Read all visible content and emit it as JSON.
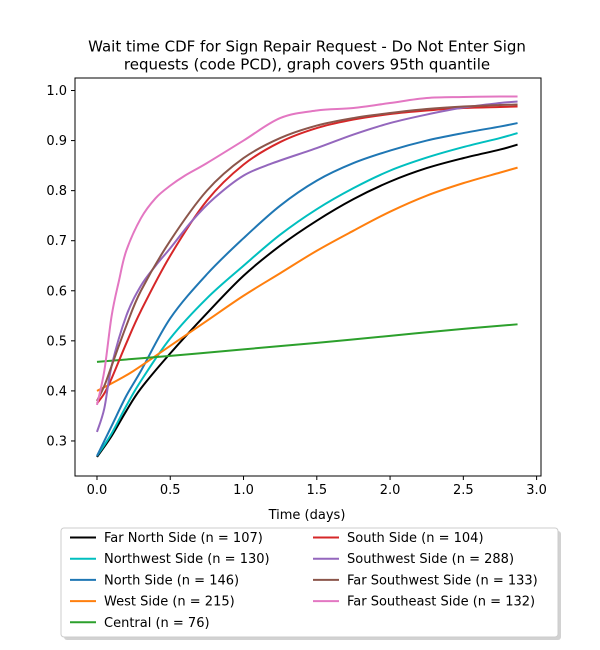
{
  "chart_data": {
    "type": "line",
    "title_lines": [
      "Wait time CDF for Sign Repair Request - Do Not Enter Sign",
      "requests (code PCD), graph covers 95th quantile"
    ],
    "xlabel": "Time (days)",
    "ylabel": "",
    "xlim": [
      -0.15,
      3.03
    ],
    "ylim": [
      0.23,
      1.025
    ],
    "xticks": [
      0.0,
      0.5,
      1.0,
      1.5,
      2.0,
      2.5,
      3.0
    ],
    "xtick_labels": [
      "0.0",
      "0.5",
      "1.0",
      "1.5",
      "2.0",
      "2.5",
      "3.0"
    ],
    "yticks": [
      0.3,
      0.4,
      0.5,
      0.6,
      0.7,
      0.8,
      0.9,
      1.0
    ],
    "ytick_labels": [
      "0.3",
      "0.4",
      "0.5",
      "0.6",
      "0.7",
      "0.8",
      "0.9",
      "1.0"
    ],
    "grid": false,
    "legend_position": "below plot, two columns",
    "series": [
      {
        "name": "Far North Side (n = 107)",
        "color": "#000000",
        "x": [
          0.0,
          0.1,
          0.2,
          0.3,
          0.5,
          0.75,
          1.0,
          1.25,
          1.5,
          1.75,
          2.0,
          2.25,
          2.5,
          2.75,
          2.87
        ],
        "y": [
          0.268,
          0.31,
          0.36,
          0.405,
          0.475,
          0.555,
          0.63,
          0.69,
          0.74,
          0.783,
          0.818,
          0.845,
          0.865,
          0.882,
          0.892
        ]
      },
      {
        "name": "Northwest Side (n = 130)",
        "color": "#00bfbf",
        "x": [
          0.0,
          0.1,
          0.2,
          0.3,
          0.5,
          0.75,
          1.0,
          1.25,
          1.5,
          1.75,
          2.0,
          2.25,
          2.5,
          2.75,
          2.87
        ],
        "y": [
          0.27,
          0.315,
          0.37,
          0.42,
          0.505,
          0.585,
          0.65,
          0.712,
          0.763,
          0.805,
          0.84,
          0.866,
          0.887,
          0.905,
          0.915
        ]
      },
      {
        "name": "North Side (n = 146)",
        "color": "#1f77b4",
        "x": [
          0.0,
          0.1,
          0.2,
          0.3,
          0.5,
          0.75,
          1.0,
          1.25,
          1.5,
          1.75,
          2.0,
          2.25,
          2.5,
          2.75,
          2.87
        ],
        "y": [
          0.27,
          0.33,
          0.39,
          0.44,
          0.545,
          0.633,
          0.705,
          0.77,
          0.82,
          0.855,
          0.88,
          0.9,
          0.915,
          0.928,
          0.935
        ]
      },
      {
        "name": "West Side (n = 215)",
        "color": "#ff7f0e",
        "x": [
          0.0,
          0.1,
          0.25,
          0.5,
          0.75,
          1.0,
          1.25,
          1.5,
          1.75,
          2.0,
          2.25,
          2.5,
          2.75,
          2.87
        ],
        "y": [
          0.4,
          0.415,
          0.44,
          0.49,
          0.54,
          0.59,
          0.635,
          0.68,
          0.72,
          0.758,
          0.79,
          0.815,
          0.836,
          0.846
        ]
      },
      {
        "name": "Central (n = 76)",
        "color": "#2ca02c",
        "x": [
          0.0,
          0.5,
          1.0,
          1.5,
          2.0,
          2.5,
          2.87
        ],
        "y": [
          0.458,
          0.47,
          0.483,
          0.496,
          0.51,
          0.524,
          0.533
        ]
      },
      {
        "name": "South Side (n = 104)",
        "color": "#d62728",
        "x": [
          0.0,
          0.05,
          0.1,
          0.2,
          0.3,
          0.5,
          0.75,
          1.0,
          1.25,
          1.5,
          1.75,
          2.0,
          2.25,
          2.5,
          2.75,
          2.87
        ],
        "y": [
          0.375,
          0.395,
          0.425,
          0.495,
          0.56,
          0.67,
          0.78,
          0.852,
          0.897,
          0.925,
          0.942,
          0.953,
          0.96,
          0.965,
          0.967,
          0.968
        ]
      },
      {
        "name": "Southwest Side (n = 288)",
        "color": "#9467bd",
        "x": [
          0.0,
          0.05,
          0.1,
          0.2,
          0.3,
          0.4,
          0.5,
          0.65,
          0.8,
          1.0,
          1.2,
          1.5,
          1.75,
          2.0,
          2.25,
          2.5,
          2.75,
          2.87
        ],
        "y": [
          0.318,
          0.365,
          0.45,
          0.55,
          0.61,
          0.65,
          0.685,
          0.74,
          0.785,
          0.83,
          0.855,
          0.885,
          0.912,
          0.935,
          0.952,
          0.966,
          0.975,
          0.978
        ]
      },
      {
        "name": "Far Southwest Side (n = 133)",
        "color": "#8c564b",
        "x": [
          0.0,
          0.05,
          0.1,
          0.2,
          0.3,
          0.5,
          0.75,
          1.0,
          1.25,
          1.5,
          1.75,
          2.0,
          2.25,
          2.5,
          2.75,
          2.87
        ],
        "y": [
          0.38,
          0.41,
          0.45,
          0.53,
          0.6,
          0.7,
          0.8,
          0.865,
          0.905,
          0.93,
          0.945,
          0.955,
          0.963,
          0.968,
          0.971,
          0.972
        ]
      },
      {
        "name": "Far Southeast Side (n = 132)",
        "color": "#e377c2",
        "x": [
          0.0,
          0.05,
          0.1,
          0.15,
          0.2,
          0.3,
          0.4,
          0.5,
          0.6,
          0.75,
          1.0,
          1.25,
          1.5,
          1.75,
          2.0,
          2.25,
          2.5,
          2.75,
          2.87
        ],
        "y": [
          0.372,
          0.44,
          0.55,
          0.62,
          0.68,
          0.745,
          0.785,
          0.81,
          0.83,
          0.855,
          0.9,
          0.945,
          0.96,
          0.965,
          0.975,
          0.985,
          0.987,
          0.988,
          0.988
        ]
      }
    ]
  }
}
